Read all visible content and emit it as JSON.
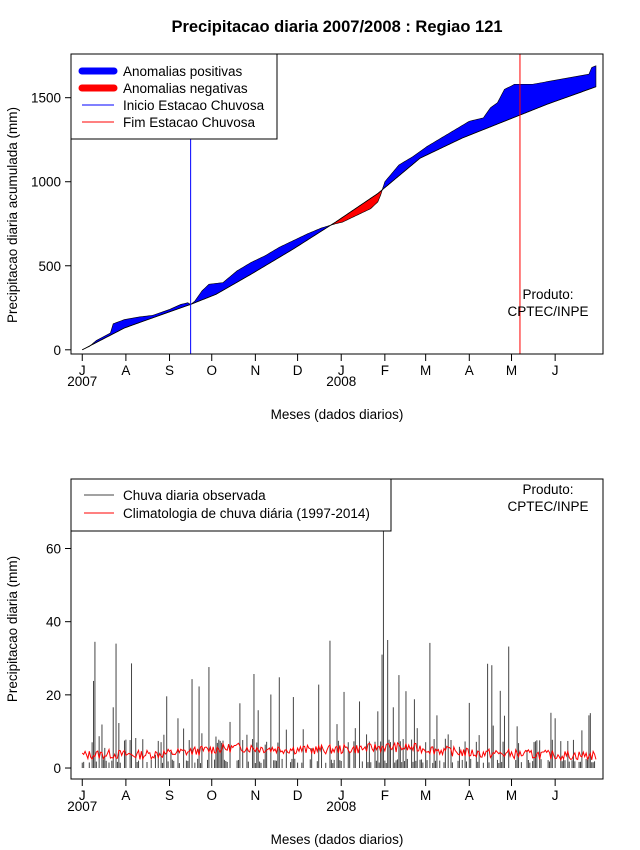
{
  "chart_data": [
    {
      "type": "area",
      "title": "Precipitacao diaria 2007/2008 : Regiao 121",
      "xlabel": "Meses (dados diarios)",
      "ylabel": "Precipitacao diaria acumulada (mm)",
      "ylim": [
        -25,
        1760
      ],
      "yticks": [
        0,
        500,
        1000,
        1500
      ],
      "x_unit": "day index starting at 1 July 2007",
      "xlim": [
        -8,
        370
      ],
      "month_ticks": {
        "labels": [
          "J",
          "A",
          "S",
          "O",
          "N",
          "D",
          "J",
          "F",
          "M",
          "A",
          "M",
          "J"
        ],
        "days": [
          0,
          31,
          62,
          92,
          123,
          153,
          184,
          215,
          244,
          275,
          305,
          336
        ]
      },
      "year_labels": [
        {
          "text": "2007",
          "day": 0
        },
        {
          "text": "2008",
          "day": 184
        }
      ],
      "legend": {
        "position": "top-left",
        "entries": [
          "Anomalias positivas",
          "Anomalias negativas",
          "Inicio Estacao Chuvosa",
          "Fim Estacao Chuvosa"
        ],
        "colors": [
          "#0000ff",
          "#ff0000",
          "#0000ff",
          "#ff0000"
        ]
      },
      "annotation": [
        "Produto:",
        "CPTEC/INPE"
      ],
      "onset_day": 77,
      "end_day": 311,
      "climatology": {
        "days": [
          0,
          30,
          60,
          77,
          95,
          120,
          150,
          180,
          210,
          240,
          270,
          300,
          330,
          365
        ],
        "values": [
          0,
          130,
          220,
          270,
          330,
          450,
          600,
          760,
          930,
          1140,
          1260,
          1360,
          1460,
          1565
        ]
      },
      "observed": {
        "days": [
          0,
          5,
          10,
          20,
          22,
          30,
          40,
          50,
          62,
          70,
          75,
          77,
          80,
          85,
          90,
          100,
          110,
          120,
          130,
          140,
          150,
          160,
          170,
          180,
          185,
          190,
          195,
          200,
          205,
          210,
          212,
          215,
          225,
          235,
          245,
          255,
          265,
          275,
          285,
          290,
          295,
          300,
          305,
          307,
          320,
          340,
          360,
          362,
          365
        ],
        "values": [
          0,
          20,
          55,
          100,
          155,
          180,
          195,
          205,
          240,
          270,
          280,
          270,
          290,
          350,
          390,
          400,
          470,
          520,
          560,
          610,
          650,
          690,
          725,
          750,
          760,
          780,
          800,
          820,
          840,
          880,
          920,
          1000,
          1100,
          1150,
          1210,
          1260,
          1310,
          1360,
          1380,
          1440,
          1470,
          1550,
          1570,
          1580,
          1580,
          1610,
          1640,
          1680,
          1690
        ]
      }
    },
    {
      "type": "line",
      "xlabel": "Meses (dados diarios)",
      "ylabel": "Precipitacao diaria (mm)",
      "ylim": [
        -3,
        79
      ],
      "yticks": [
        0,
        20,
        40,
        60
      ],
      "x_unit": "day index starting at 1 July 2007",
      "xlim": [
        -8,
        370
      ],
      "month_ticks": {
        "labels": [
          "J",
          "A",
          "S",
          "O",
          "N",
          "D",
          "J",
          "F",
          "M",
          "A",
          "M",
          "J"
        ],
        "days": [
          0,
          31,
          62,
          92,
          123,
          153,
          184,
          215,
          244,
          275,
          305,
          336
        ]
      },
      "year_labels": [
        {
          "text": "2007",
          "day": 0
        },
        {
          "text": "2008",
          "day": 184
        }
      ],
      "legend": {
        "position": "top-left",
        "entries": [
          "Chuva diaria observada",
          "Climatologia de chuva diária (1997-2014)"
        ],
        "colors": [
          "#444444",
          "#ff0000"
        ]
      },
      "annotation": [
        "Produto:",
        "CPTEC/INPE"
      ],
      "series": [
        {
          "name": "Chuva diaria observada",
          "peaks": {
            "days": [
              8,
              9,
              12,
              14,
              16,
              22,
              24,
              26,
              35,
              38,
              52,
              58,
              60,
              63,
              68,
              72,
              78,
              83,
              85,
              90,
              92,
              95,
              100,
              105,
              112,
              117,
              122,
              125,
              130,
              134,
              140,
              145,
              150,
              157,
              163,
              168,
              170,
              176,
              181,
              186,
              190,
              193,
              194,
              197,
              202,
              210,
              213,
              214,
              217,
              221,
              225,
              230,
              236,
              238,
              247,
              252,
              258,
              260,
              268,
              275,
              282,
              288,
              291,
              292,
              297,
              300,
              303,
              309,
              316,
              322,
              333,
              336,
              345,
              355,
              360,
              361
            ],
            "values": [
              23.8,
              34.5,
              8.7,
              11.9,
              5.5,
              16.6,
              34.0,
              12.3,
              28.6,
              8.2,
              3.6,
              9.1,
              19.6,
              4.4,
              13.6,
              10.8,
              24.3,
              22.3,
              9.5,
              27.6,
              4.8,
              8.6,
              7.5,
              12.6,
              17.7,
              9.1,
              25.7,
              15.8,
              6.4,
              20.1,
              24.8,
              10.5,
              19.4,
              10.6,
              5.4,
              22.8,
              6.2,
              34.8,
              12.0,
              20.8,
              4.5,
              7.3,
              10.9,
              18.2,
              9.2,
              15.5,
              31.0,
              65.0,
              35.0,
              16.6,
              25.4,
              21.0,
              18.8,
              10.9,
              34.2,
              14.4,
              8.0,
              9.2,
              5.8,
              17.8,
              9.0,
              28.5,
              28.1,
              11.6,
              21.1,
              14.3,
              33.2,
              11.4,
              4.9,
              7.3,
              15.1,
              13.6,
              7.4,
              10.3,
              14.4,
              15.0
            ]
          }
        },
        {
          "name": "Climatologia de chuva diária (1997-2014)",
          "days": [
            0,
            20,
            40,
            60,
            80,
            95,
            110,
            125,
            140,
            160,
            180,
            200,
            215,
            240,
            260,
            280,
            300,
            320,
            340,
            365
          ],
          "values": [
            3.5,
            3.8,
            3.6,
            4.0,
            4.6,
            5.2,
            5.6,
            5.4,
            5.2,
            5.0,
            5.1,
            5.3,
            5.8,
            5.4,
            4.6,
            4.0,
            3.9,
            3.7,
            3.5,
            3.4
          ]
        }
      ]
    }
  ]
}
